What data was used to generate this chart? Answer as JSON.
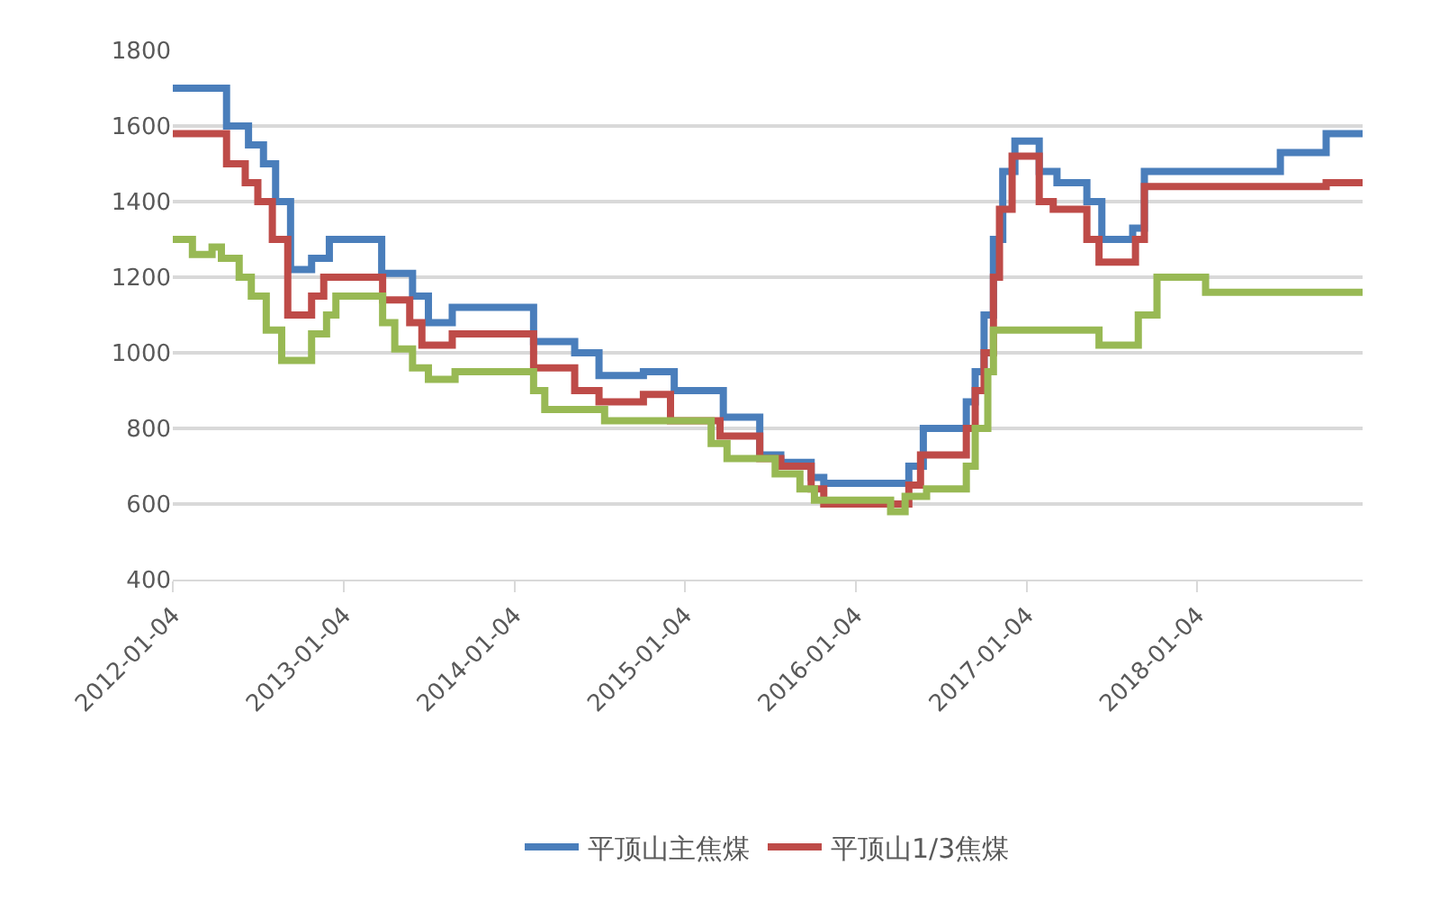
{
  "chart_data": {
    "type": "step",
    "xlim": [
      "2012-01-04",
      "2018-12-24"
    ],
    "xticks": [
      "2012-01-04",
      "2013-01-04",
      "2014-01-04",
      "2015-01-04",
      "2016-01-04",
      "2017-01-04",
      "2018-01-04"
    ],
    "ylim": [
      400,
      1800
    ],
    "yticks": [
      400,
      600,
      800,
      1000,
      1200,
      1400,
      1600,
      1800
    ],
    "grid": "y",
    "legend": "bottom",
    "series": [
      {
        "name": "平顶山主焦煤",
        "color": "#4a7ebb",
        "x": [
          "2012-01-04",
          "2012-04-28",
          "2012-06-14",
          "2012-07-16",
          "2012-08-11",
          "2012-09-12",
          "2012-10-27",
          "2012-12-04",
          "2013-03-26",
          "2013-05-31",
          "2013-07-04",
          "2013-08-24",
          "2014-02-14",
          "2014-05-13",
          "2014-07-04",
          "2014-10-07",
          "2014-12-12",
          "2015-03-27",
          "2015-06-13",
          "2015-07-28",
          "2015-10-01",
          "2015-10-28",
          "2016-04-27",
          "2016-05-28",
          "2016-08-28",
          "2016-09-16",
          "2016-10-05",
          "2016-10-25",
          "2016-11-14",
          "2016-12-10",
          "2017-01-31",
          "2017-03-10",
          "2017-05-13",
          "2017-06-14",
          "2017-08-19",
          "2017-09-13",
          "2018-07-01",
          "2018-10-07",
          "2018-12-24"
        ],
        "values": [
          1700,
          1600,
          1550,
          1500,
          1400,
          1220,
          1250,
          1300,
          1210,
          1150,
          1080,
          1120,
          1030,
          1000,
          940,
          950,
          900,
          830,
          730,
          710,
          670,
          655,
          700,
          800,
          870,
          950,
          1100,
          1300,
          1480,
          1560,
          1480,
          1450,
          1400,
          1300,
          1330,
          1480,
          1530,
          1580,
          1580
        ]
      },
      {
        "name": "平顶山1/3焦煤",
        "color": "#be4b48",
        "x": [
          "2012-01-04",
          "2012-04-28",
          "2012-06-07",
          "2012-07-04",
          "2012-08-04",
          "2012-09-06",
          "2012-10-27",
          "2012-11-22",
          "2013-03-28",
          "2013-05-25",
          "2013-06-20",
          "2013-08-24",
          "2014-02-14",
          "2014-05-13",
          "2014-07-04",
          "2014-10-07",
          "2014-12-04",
          "2015-03-20",
          "2015-06-13",
          "2015-07-28",
          "2015-10-01",
          "2015-10-28",
          "2016-04-27",
          "2016-05-22",
          "2016-08-28",
          "2016-09-16",
          "2016-10-05",
          "2016-10-25",
          "2016-11-07",
          "2016-12-04",
          "2017-01-31",
          "2017-03-02",
          "2017-05-13",
          "2017-06-08",
          "2017-08-25",
          "2017-09-13",
          "2018-10-07",
          "2018-12-24"
        ],
        "values": [
          1580,
          1500,
          1450,
          1400,
          1300,
          1100,
          1150,
          1200,
          1140,
          1080,
          1020,
          1050,
          960,
          900,
          870,
          890,
          820,
          780,
          720,
          700,
          640,
          600,
          650,
          730,
          800,
          900,
          1000,
          1200,
          1380,
          1520,
          1400,
          1380,
          1300,
          1240,
          1300,
          1440,
          1450,
          1450
        ]
      },
      {
        "color": "#98b954",
        "x": [
          "2012-01-04",
          "2012-02-15",
          "2012-03-28",
          "2012-04-17",
          "2012-05-25",
          "2012-06-20",
          "2012-07-22",
          "2012-08-24",
          "2012-10-27",
          "2012-11-28",
          "2012-12-18",
          "2013-03-28",
          "2013-04-23",
          "2013-05-31",
          "2013-07-04",
          "2013-08-30",
          "2014-02-14",
          "2014-03-10",
          "2014-07-16",
          "2015-03-01",
          "2015-04-04",
          "2015-07-16",
          "2015-09-07",
          "2015-10-08",
          "2016-03-19",
          "2016-04-19",
          "2016-06-04",
          "2016-08-28",
          "2016-09-16",
          "2016-10-13",
          "2016-10-25",
          "2017-06-08",
          "2017-08-31",
          "2017-10-10",
          "2018-01-22",
          "2018-12-24"
        ],
        "values": [
          1300,
          1260,
          1280,
          1250,
          1200,
          1150,
          1060,
          980,
          1050,
          1100,
          1150,
          1080,
          1010,
          960,
          930,
          950,
          900,
          850,
          820,
          760,
          720,
          680,
          640,
          610,
          580,
          620,
          640,
          700,
          800,
          950,
          1060,
          1020,
          1100,
          1200,
          1160,
          1160
        ]
      }
    ]
  }
}
